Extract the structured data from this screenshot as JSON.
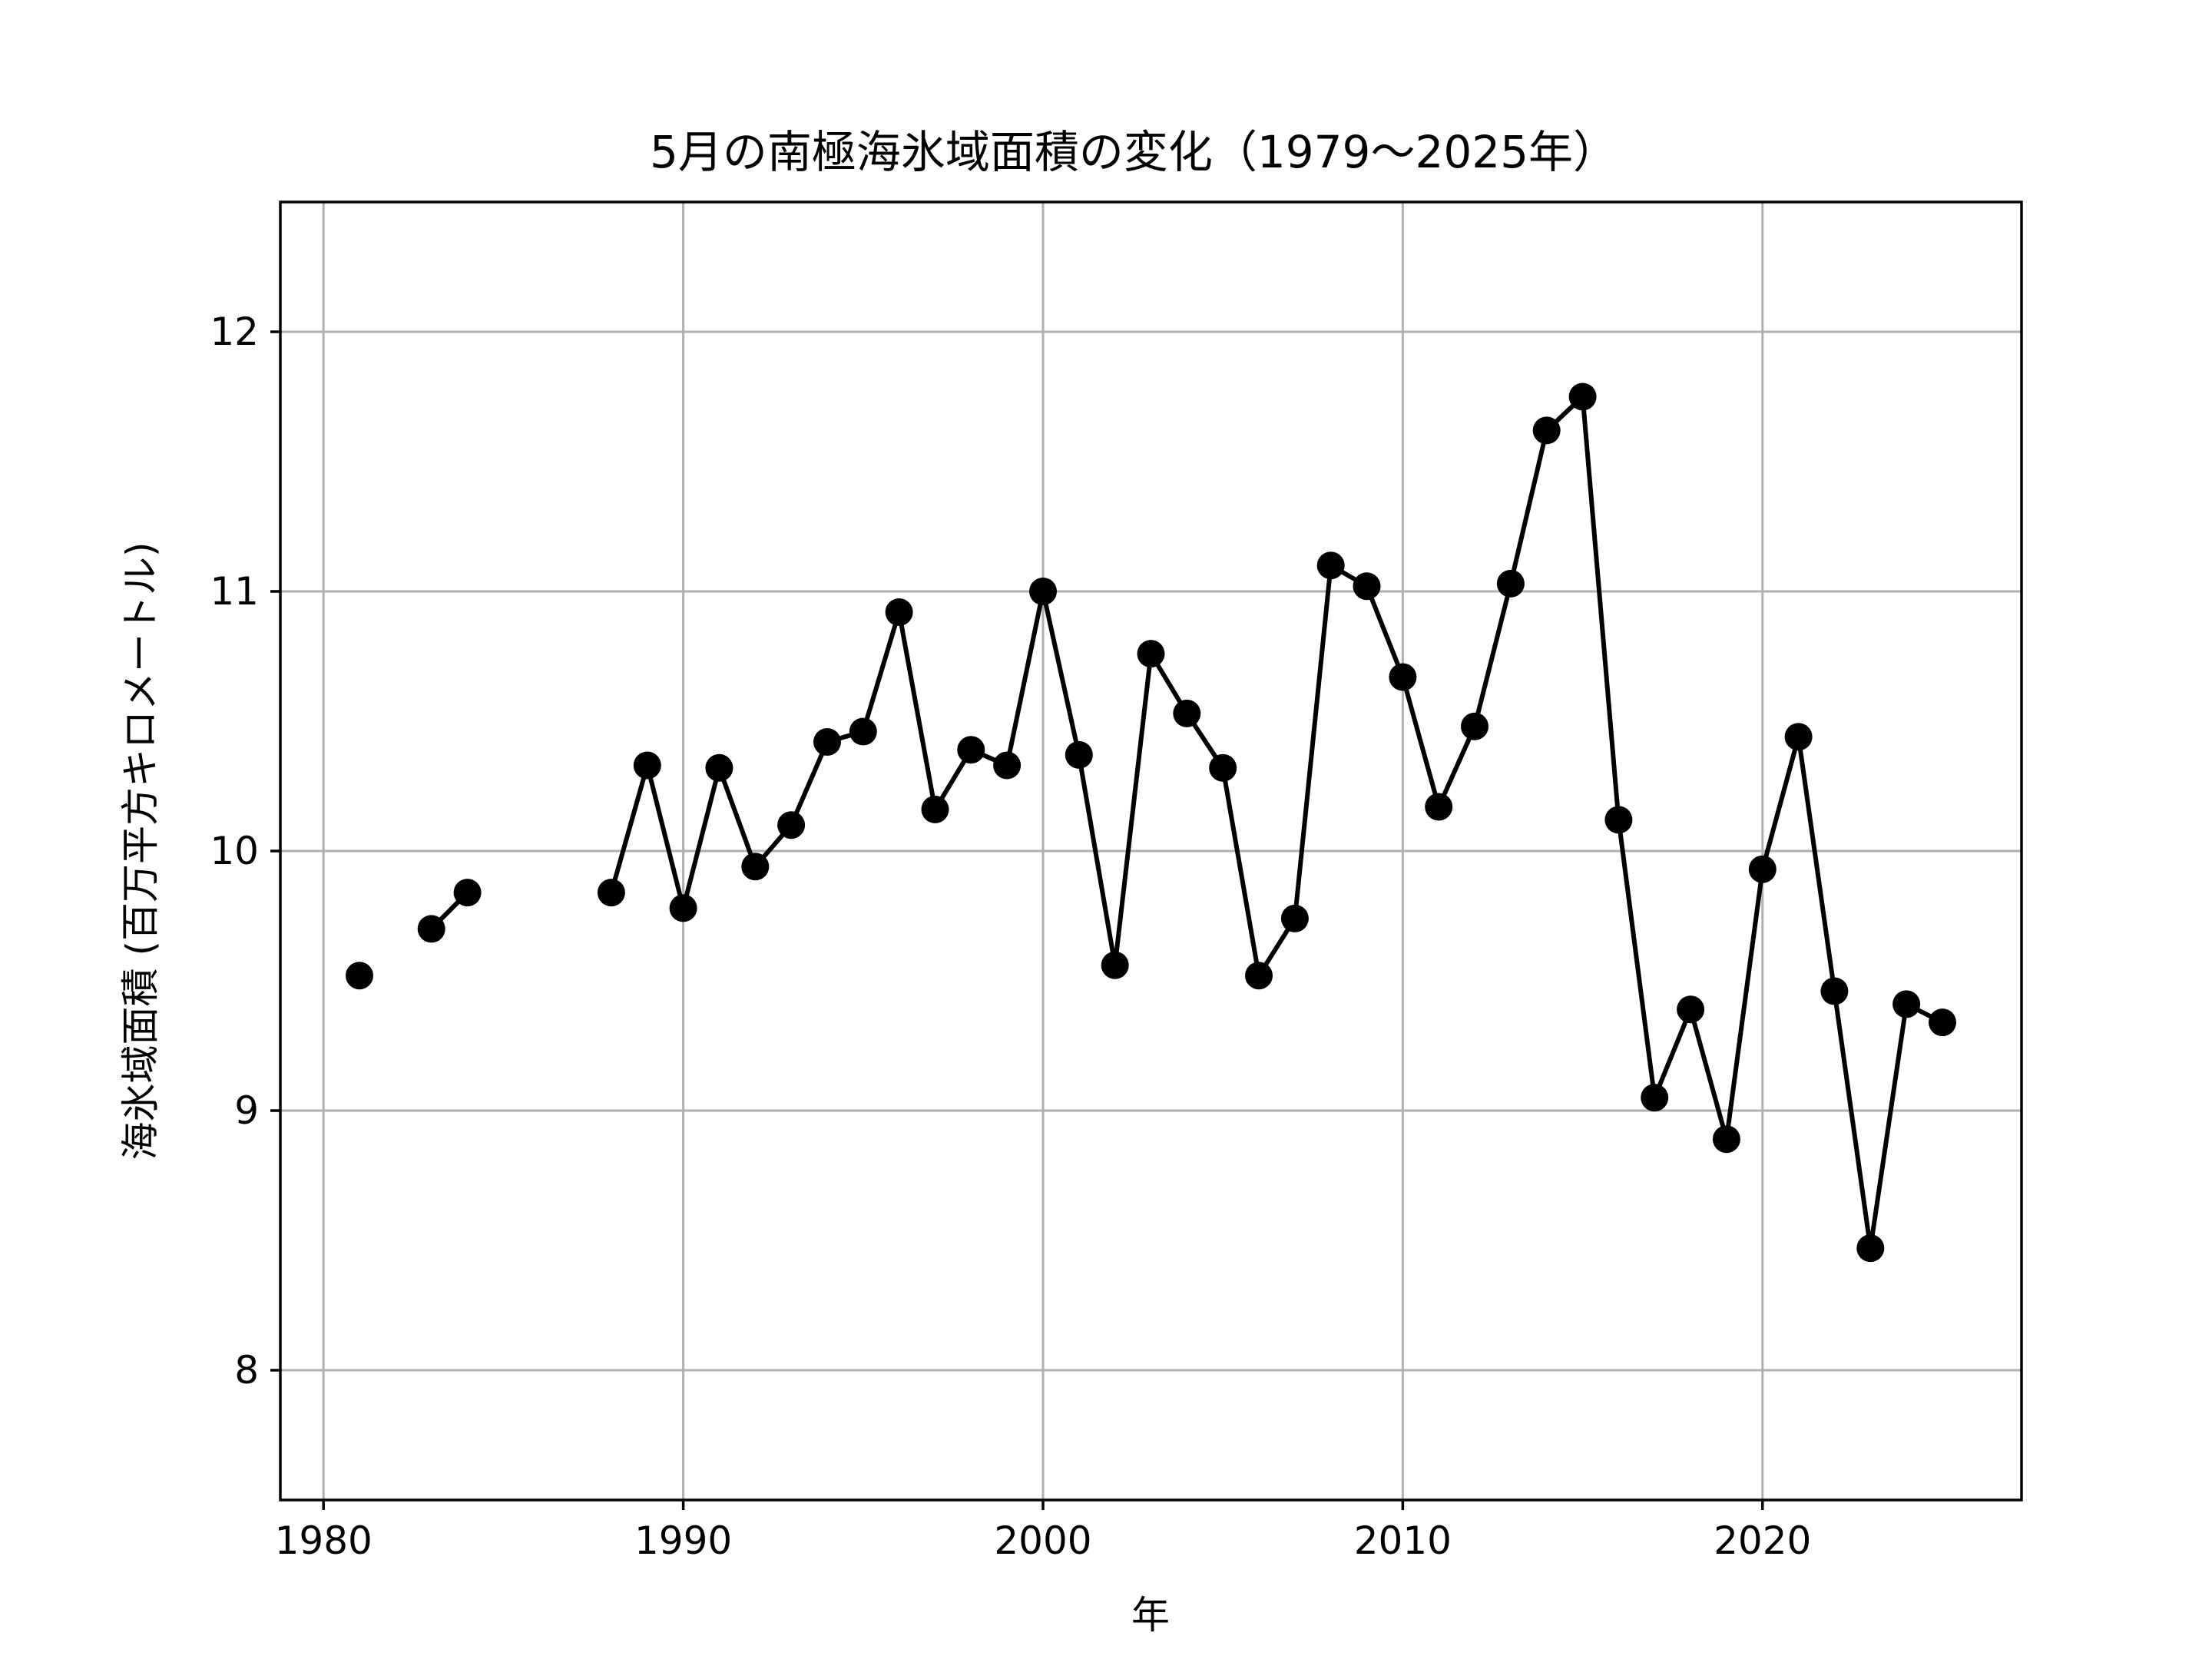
{
  "chart_data": {
    "type": "line",
    "title": "5月の南極海氷域面積の変化（1979〜2025年）",
    "xlabel": "年",
    "ylabel": "海氷域面積 (百万平方キロメートル)",
    "xlim": [
      1978.8,
      2027.2
    ],
    "ylim": [
      7.5,
      12.5
    ],
    "xticks": [
      1980,
      1990,
      2000,
      2010,
      2020
    ],
    "yticks": [
      8,
      9,
      10,
      11,
      12
    ],
    "grid": true,
    "line_color": "#000000",
    "marker": "circle",
    "series": [
      {
        "x": [
          1979,
          1980,
          1981,
          1982,
          1983,
          1984,
          1985,
          1986,
          1987,
          1988,
          1989,
          1990,
          1991,
          1992,
          1993,
          1994,
          1995,
          1996,
          1997,
          1998,
          1999,
          2000,
          2001,
          2002,
          2003,
          2004,
          2005,
          2006,
          2007,
          2008,
          2009,
          2010,
          2011,
          2012,
          2013,
          2014,
          2015,
          2016,
          2017,
          2018,
          2019,
          2020,
          2021,
          2022,
          2023,
          2024,
          2025
        ],
        "y": [
          null,
          null,
          9.52,
          null,
          9.7,
          9.84,
          null,
          null,
          null,
          9.84,
          10.33,
          9.78,
          10.32,
          9.94,
          10.1,
          10.42,
          10.46,
          10.92,
          10.16,
          10.39,
          10.33,
          11.0,
          10.37,
          9.56,
          10.76,
          10.53,
          10.32,
          9.52,
          9.74,
          11.1,
          11.02,
          10.67,
          10.17,
          10.48,
          11.03,
          11.62,
          11.75,
          10.12,
          9.05,
          9.39,
          8.89,
          9.93,
          10.44,
          9.46,
          8.47,
          9.41,
          9.34
        ]
      }
    ]
  }
}
